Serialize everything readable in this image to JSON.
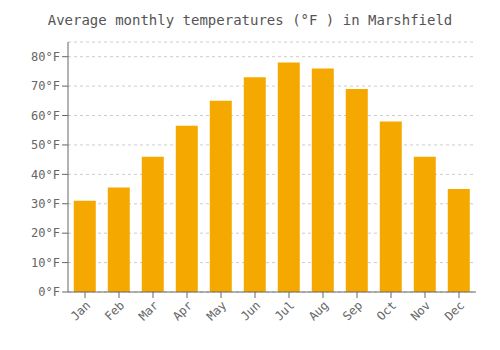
{
  "chart_data": {
    "type": "bar",
    "title": "Average monthly temperatures (°F ) in Marshfield",
    "categories": [
      "Jan",
      "Feb",
      "Mar",
      "Apr",
      "May",
      "Jun",
      "Jul",
      "Aug",
      "Sep",
      "Oct",
      "Nov",
      "Dec"
    ],
    "values": [
      31,
      35.5,
      46,
      56.5,
      65,
      73,
      78,
      76,
      69,
      58,
      46,
      35
    ],
    "color": "#F5A800",
    "ylim": [
      0,
      85
    ],
    "yticks": [
      {
        "value": 0,
        "label": "0°F"
      },
      {
        "value": 10,
        "label": "10°F"
      },
      {
        "value": 20,
        "label": "20°F"
      },
      {
        "value": 30,
        "label": "30°F"
      },
      {
        "value": 40,
        "label": "40°F"
      },
      {
        "value": 50,
        "label": "50°F"
      },
      {
        "value": 60,
        "label": "60°F"
      },
      {
        "value": 70,
        "label": "70°F"
      },
      {
        "value": 80,
        "label": "80°F"
      }
    ],
    "grid": true
  }
}
